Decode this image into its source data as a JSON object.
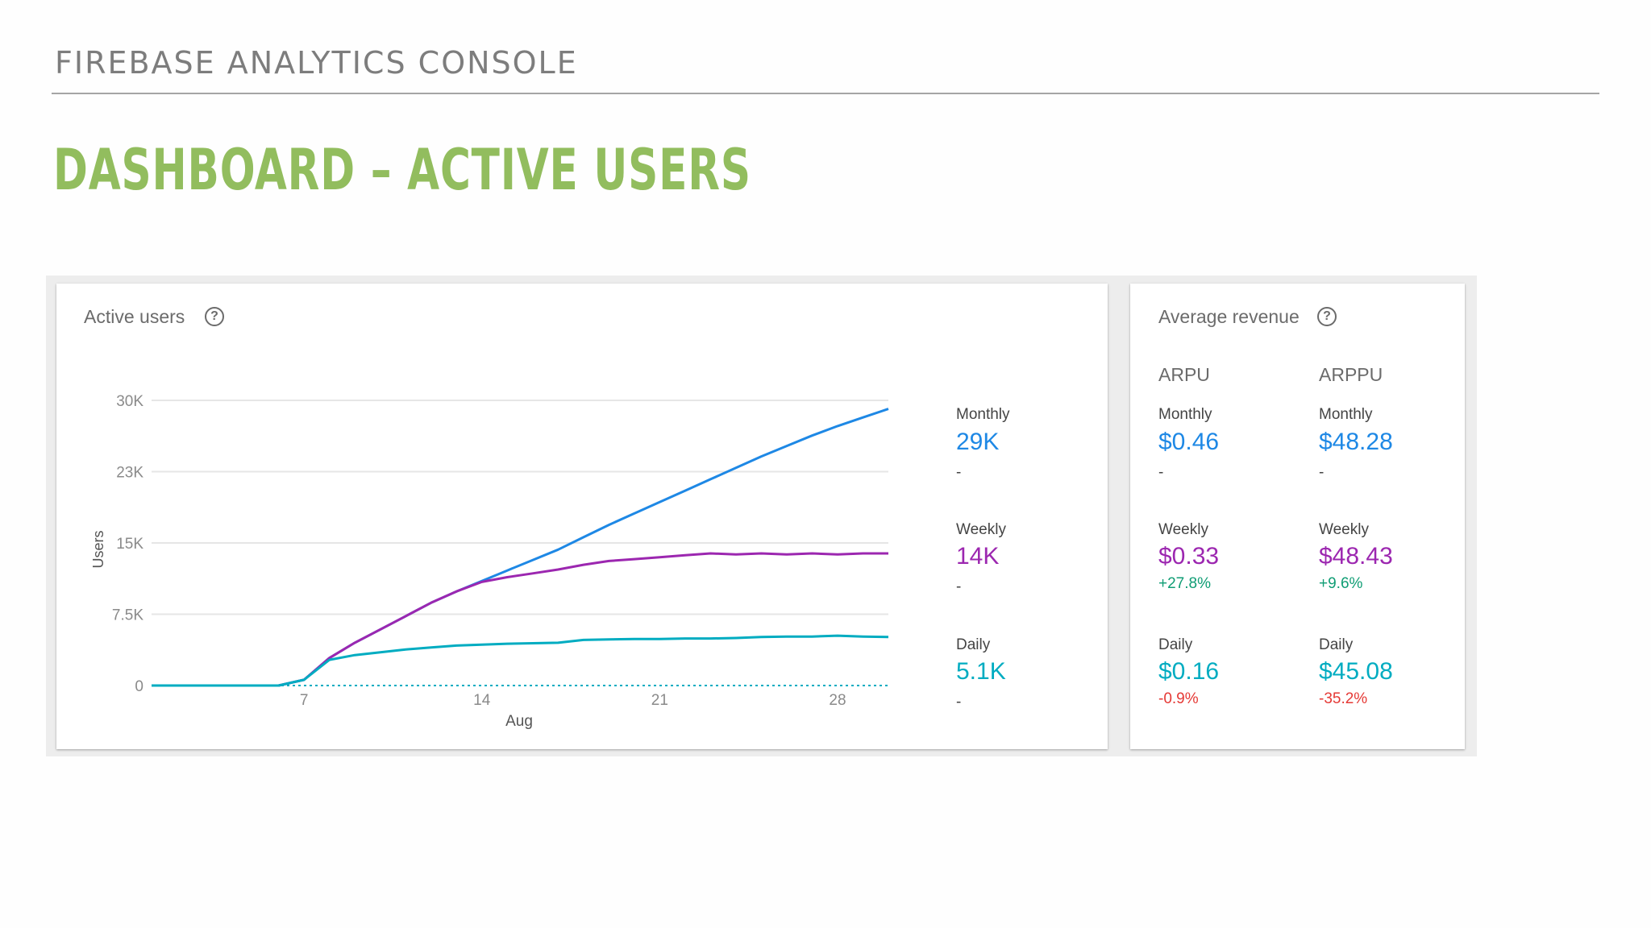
{
  "header": {
    "kicker": "FIREBASE ANALYTICS CONSOLE",
    "title": "DASHBOARD – ACTIVE USERS"
  },
  "active_users": {
    "title": "Active users",
    "help_icon": "help-circle-icon",
    "legend": [
      {
        "label": "Monthly",
        "value": "29K",
        "change": "-",
        "color": "#1e88e5"
      },
      {
        "label": "Weekly",
        "value": "14K",
        "change": "-",
        "color": "#9c27b0"
      },
      {
        "label": "Daily",
        "value": "5.1K",
        "change": "-",
        "color": "#00acc1"
      }
    ]
  },
  "average_revenue": {
    "title": "Average revenue",
    "help_icon": "help-circle-icon",
    "columns": [
      {
        "heading": "ARPU",
        "rows": [
          {
            "label": "Monthly",
            "value": "$0.46",
            "change": "-",
            "value_color": "#1e88e5",
            "change_color": "#444444"
          },
          {
            "label": "Weekly",
            "value": "$0.33",
            "change": "+27.8%",
            "value_color": "#9c27b0",
            "change_color": "#0f9d74"
          },
          {
            "label": "Daily",
            "value": "$0.16",
            "change": "-0.9%",
            "value_color": "#00acc1",
            "change_color": "#e53935"
          }
        ]
      },
      {
        "heading": "ARPPU",
        "rows": [
          {
            "label": "Monthly",
            "value": "$48.28",
            "change": "-",
            "value_color": "#1e88e5",
            "change_color": "#444444"
          },
          {
            "label": "Weekly",
            "value": "$48.43",
            "change": "+9.6%",
            "value_color": "#9c27b0",
            "change_color": "#0f9d74"
          },
          {
            "label": "Daily",
            "value": "$45.08",
            "change": "-35.2%",
            "value_color": "#00acc1",
            "change_color": "#e53935"
          }
        ]
      }
    ]
  },
  "chart_data": {
    "type": "line",
    "title": "",
    "xlabel": "Aug",
    "ylabel": "Users",
    "x_ticks": [
      7,
      14,
      21,
      28
    ],
    "y_ticks": [
      0,
      7500,
      15000,
      22500,
      30000
    ],
    "y_tick_labels": [
      "0",
      "7.5K",
      "15K",
      "23K",
      "30K"
    ],
    "xlim": [
      1,
      30
    ],
    "ylim": [
      0,
      30000
    ],
    "grid": true,
    "x": [
      1,
      2,
      3,
      4,
      5,
      6,
      7,
      8,
      9,
      10,
      11,
      12,
      13,
      14,
      15,
      16,
      17,
      18,
      19,
      20,
      21,
      22,
      23,
      24,
      25,
      26,
      27,
      28,
      29,
      30
    ],
    "series": [
      {
        "name": "Monthly",
        "color": "#1e88e5",
        "values": [
          0,
          0,
          0,
          0,
          0,
          0,
          600,
          2900,
          4500,
          5900,
          7300,
          8700,
          9900,
          11000,
          12100,
          13200,
          14300,
          15600,
          16900,
          18100,
          19300,
          20500,
          21700,
          22900,
          24100,
          25200,
          26300,
          27300,
          28200,
          29100
        ]
      },
      {
        "name": "Weekly",
        "color": "#9c27b0",
        "values": [
          0,
          0,
          0,
          0,
          0,
          0,
          600,
          2900,
          4500,
          5900,
          7300,
          8700,
          9900,
          10900,
          11400,
          11800,
          12200,
          12700,
          13100,
          13300,
          13500,
          13700,
          13900,
          13800,
          13900,
          13800,
          13900,
          13800,
          13900,
          13900
        ]
      },
      {
        "name": "Daily",
        "color": "#00acc1",
        "values": [
          0,
          0,
          0,
          0,
          0,
          0,
          600,
          2700,
          3200,
          3500,
          3800,
          4000,
          4200,
          4300,
          4400,
          4450,
          4500,
          4800,
          4850,
          4900,
          4900,
          4950,
          4950,
          5000,
          5100,
          5150,
          5150,
          5250,
          5150,
          5100
        ]
      },
      {
        "name": "",
        "color": "#00acc1",
        "dashed": true,
        "values": [
          0,
          0,
          0,
          0,
          0,
          0,
          0,
          0,
          0,
          0,
          0,
          0,
          0,
          0,
          0,
          0,
          0,
          0,
          0,
          0,
          0,
          0,
          0,
          0,
          0,
          0,
          0,
          0,
          0,
          0
        ]
      }
    ]
  }
}
